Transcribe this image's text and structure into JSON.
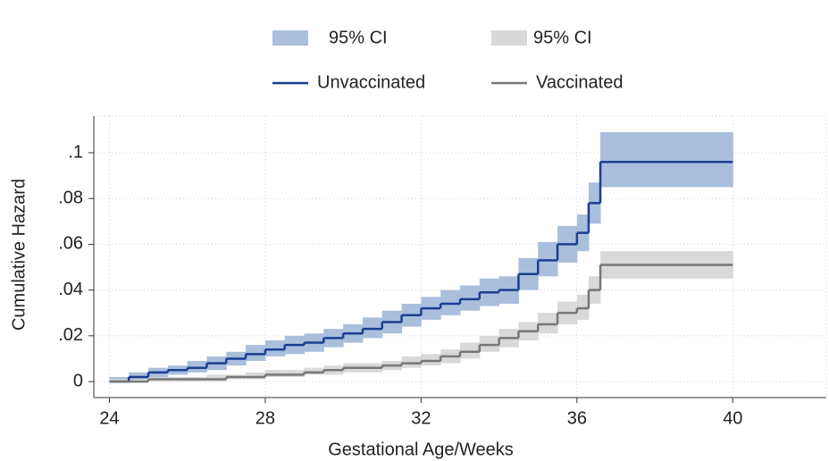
{
  "chart_data": {
    "type": "step",
    "xlabel": "Gestational Age/Weeks",
    "ylabel": "Cumulative Hazard",
    "x": [
      24,
      24.5,
      25,
      25.5,
      26,
      26.5,
      27,
      27.5,
      28,
      28.5,
      29,
      29.5,
      30,
      30.5,
      31,
      31.5,
      32,
      32.5,
      33,
      33.5,
      34,
      34.5,
      35,
      35.5,
      36,
      36.3,
      36.6,
      40
    ],
    "series": [
      {
        "name": "Unvaccinated",
        "color": "#1a3f8f",
        "ci_name": "95% CI",
        "ci_color": "#a9bfdc",
        "values": [
          0,
          0.002,
          0.004,
          0.005,
          0.006,
          0.008,
          0.01,
          0.012,
          0.014,
          0.016,
          0.017,
          0.019,
          0.021,
          0.023,
          0.026,
          0.029,
          0.032,
          0.034,
          0.036,
          0.039,
          0.04,
          0.047,
          0.053,
          0.06,
          0.065,
          0.078,
          0.096,
          0.096
        ],
        "ci_lower": [
          0,
          0.001,
          0.002,
          0.003,
          0.004,
          0.005,
          0.007,
          0.009,
          0.011,
          0.012,
          0.013,
          0.015,
          0.017,
          0.019,
          0.021,
          0.024,
          0.027,
          0.029,
          0.031,
          0.033,
          0.034,
          0.04,
          0.046,
          0.052,
          0.057,
          0.069,
          0.085,
          0.085
        ],
        "ci_upper": [
          0.002,
          0.004,
          0.006,
          0.007,
          0.009,
          0.011,
          0.013,
          0.016,
          0.018,
          0.02,
          0.021,
          0.023,
          0.025,
          0.028,
          0.031,
          0.034,
          0.037,
          0.04,
          0.042,
          0.045,
          0.046,
          0.054,
          0.061,
          0.068,
          0.073,
          0.087,
          0.109,
          0.109
        ]
      },
      {
        "name": "Vaccinated",
        "color": "#777777",
        "ci_name": "95% CI",
        "ci_color": "#d9d9d9",
        "values": [
          0,
          0,
          0.001,
          0.001,
          0.001,
          0.001,
          0.002,
          0.002,
          0.003,
          0.003,
          0.004,
          0.005,
          0.006,
          0.006,
          0.007,
          0.008,
          0.009,
          0.011,
          0.013,
          0.016,
          0.019,
          0.022,
          0.025,
          0.03,
          0.032,
          0.04,
          0.051,
          0.051
        ],
        "ci_lower": [
          0,
          0,
          0,
          0,
          0,
          0,
          0.001,
          0.001,
          0.002,
          0.002,
          0.003,
          0.003,
          0.004,
          0.004,
          0.005,
          0.006,
          0.007,
          0.008,
          0.01,
          0.013,
          0.015,
          0.018,
          0.021,
          0.025,
          0.027,
          0.034,
          0.045,
          0.045
        ],
        "ci_upper": [
          0.001,
          0.001,
          0.002,
          0.002,
          0.002,
          0.003,
          0.003,
          0.004,
          0.005,
          0.005,
          0.006,
          0.007,
          0.008,
          0.008,
          0.009,
          0.011,
          0.012,
          0.014,
          0.017,
          0.02,
          0.023,
          0.026,
          0.03,
          0.035,
          0.038,
          0.046,
          0.057,
          0.057
        ]
      }
    ],
    "xlim": [
      23.6,
      42.4
    ],
    "xticks": [
      24,
      28,
      32,
      36,
      40
    ],
    "ylim": [
      -0.007,
      0.116
    ],
    "yticks": [
      0,
      {
        "value": 0.02,
        "label": ".02"
      },
      {
        "value": 0.04,
        "label": ".04"
      },
      {
        "value": 0.06,
        "label": ".06"
      },
      {
        "value": 0.08,
        "label": ".08"
      },
      {
        "value": 0.1,
        "label": ".1"
      }
    ],
    "grid": true
  }
}
